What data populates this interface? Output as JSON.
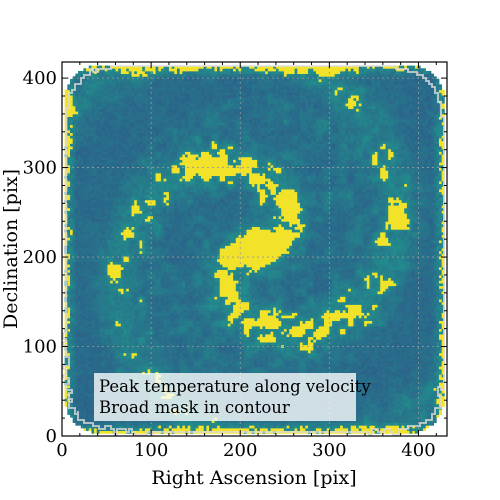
{
  "chart_data": {
    "type": "heatmap",
    "title": "",
    "xlabel": "Right Ascension [pix]",
    "ylabel": "Declination [pix]",
    "xlim": [
      0,
      432
    ],
    "ylim": [
      0,
      418
    ],
    "x_ticks": [
      {
        "value": 0,
        "label": "0"
      },
      {
        "value": 100,
        "label": "100"
      },
      {
        "value": 200,
        "label": "200"
      },
      {
        "value": 300,
        "label": "300"
      },
      {
        "value": 400,
        "label": "400"
      }
    ],
    "y_ticks": [
      {
        "value": 0,
        "label": "0"
      },
      {
        "value": 100,
        "label": "100"
      },
      {
        "value": 200,
        "label": "200"
      },
      {
        "value": 300,
        "label": "300"
      },
      {
        "value": 400,
        "label": "400"
      }
    ],
    "grid": true,
    "colormap": [
      "#440154",
      "#2c5f8a",
      "#21918c",
      "#5ec962",
      "#fde725"
    ],
    "background_color": "#2b5f8a",
    "highlight_color": "#f2e32a",
    "contour_color": "#ffffff",
    "galaxy": {
      "center": [
        220,
        210
      ],
      "arms": 2,
      "corner_radius": 40,
      "edge_inset": 3
    },
    "annotation": {
      "lines": [
        "Peak temperature along velocity",
        "Broad mask in contour"
      ],
      "position": "lower-left"
    }
  }
}
